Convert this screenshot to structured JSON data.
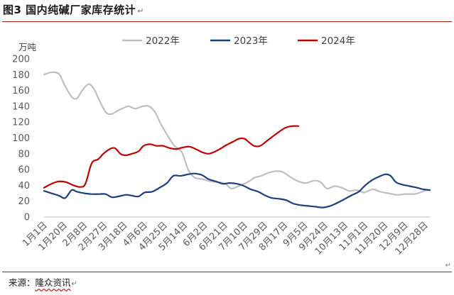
{
  "header": {
    "title": "图3  国内纯碱厂家库存统计",
    "mark": "↵"
  },
  "footer": {
    "source_label": "来源：",
    "source_value": "隆众资讯",
    "mark": "↵",
    "end_mark": "↵"
  },
  "colors": {
    "s2022": "#bfbfbf",
    "s2023": "#1f3f7a",
    "s2024": "#c00000",
    "rule": "#b71c1c",
    "axis": "#bfbfbf"
  },
  "chart_data": {
    "type": "line",
    "title": "",
    "ylabel": "万吨",
    "xlabel": "",
    "ylim": [
      0,
      200
    ],
    "yticks": [
      0,
      20,
      40,
      60,
      80,
      100,
      120,
      140,
      160,
      180,
      200
    ],
    "grid": false,
    "legend": "top",
    "x_tick_labels": [
      "1月1日",
      "1月20日",
      "2月8日",
      "2月27日",
      "3月18日",
      "4月6日",
      "4月25日",
      "5月14日",
      "6月2日",
      "6月21日",
      "7月10日",
      "7月29日",
      "8月17日",
      "9月5日",
      "9月24日",
      "10月13日",
      "11月1日",
      "11月20日",
      "12月9日",
      "12月28日"
    ],
    "x_domain": [
      1,
      365
    ],
    "series": [
      {
        "name": "2022年",
        "color_key": "s2022",
        "points": [
          [
            1,
            180
          ],
          [
            8,
            183
          ],
          [
            15,
            181
          ],
          [
            20,
            168
          ],
          [
            27,
            152
          ],
          [
            32,
            150
          ],
          [
            37,
            160
          ],
          [
            43,
            168
          ],
          [
            48,
            162
          ],
          [
            53,
            148
          ],
          [
            59,
            133
          ],
          [
            64,
            130
          ],
          [
            70,
            134
          ],
          [
            76,
            138
          ],
          [
            81,
            140
          ],
          [
            87,
            137
          ],
          [
            94,
            140
          ],
          [
            100,
            140
          ],
          [
            106,
            132
          ],
          [
            111,
            118
          ],
          [
            118,
            102
          ],
          [
            124,
            90
          ],
          [
            131,
            82
          ],
          [
            137,
            60
          ],
          [
            143,
            50
          ],
          [
            150,
            48
          ],
          [
            158,
            45
          ],
          [
            166,
            44
          ],
          [
            172,
            42
          ],
          [
            178,
            36
          ],
          [
            186,
            40
          ],
          [
            193,
            44
          ],
          [
            200,
            50
          ],
          [
            206,
            52
          ],
          [
            213,
            56
          ],
          [
            220,
            58
          ],
          [
            226,
            57
          ],
          [
            234,
            50
          ],
          [
            241,
            45
          ],
          [
            248,
            43
          ],
          [
            256,
            46
          ],
          [
            262,
            44
          ],
          [
            268,
            36
          ],
          [
            275,
            39
          ],
          [
            282,
            37
          ],
          [
            289,
            33
          ],
          [
            296,
            34
          ],
          [
            303,
            31
          ],
          [
            311,
            35
          ],
          [
            318,
            32
          ],
          [
            326,
            30
          ],
          [
            334,
            28
          ],
          [
            342,
            29
          ],
          [
            350,
            29
          ],
          [
            356,
            31
          ],
          [
            362,
            34
          ],
          [
            365,
            34
          ]
        ]
      },
      {
        "name": "2023年",
        "color_key": "s2023",
        "points": [
          [
            1,
            33
          ],
          [
            8,
            30
          ],
          [
            15,
            27
          ],
          [
            21,
            24
          ],
          [
            27,
            34
          ],
          [
            32,
            32
          ],
          [
            39,
            30
          ],
          [
            46,
            29
          ],
          [
            53,
            29
          ],
          [
            59,
            29
          ],
          [
            65,
            25
          ],
          [
            71,
            26
          ],
          [
            78,
            28
          ],
          [
            84,
            27
          ],
          [
            90,
            26
          ],
          [
            96,
            31
          ],
          [
            103,
            32
          ],
          [
            110,
            37
          ],
          [
            117,
            43
          ],
          [
            123,
            52
          ],
          [
            130,
            52
          ],
          [
            137,
            54
          ],
          [
            143,
            55
          ],
          [
            150,
            53
          ],
          [
            156,
            48
          ],
          [
            163,
            45
          ],
          [
            170,
            42
          ],
          [
            176,
            43
          ],
          [
            183,
            42
          ],
          [
            190,
            39
          ],
          [
            196,
            35
          ],
          [
            203,
            32
          ],
          [
            210,
            27
          ],
          [
            216,
            24
          ],
          [
            223,
            23
          ],
          [
            230,
            21
          ],
          [
            236,
            17
          ],
          [
            243,
            15
          ],
          [
            250,
            14
          ],
          [
            257,
            13
          ],
          [
            264,
            12
          ],
          [
            271,
            14
          ],
          [
            278,
            18
          ],
          [
            285,
            23
          ],
          [
            292,
            28
          ],
          [
            298,
            32
          ],
          [
            304,
            40
          ],
          [
            311,
            47
          ],
          [
            317,
            51
          ],
          [
            323,
            54
          ],
          [
            328,
            52
          ],
          [
            333,
            44
          ],
          [
            339,
            41
          ],
          [
            346,
            39
          ],
          [
            353,
            37
          ],
          [
            359,
            35
          ],
          [
            365,
            34
          ]
        ]
      },
      {
        "name": "2024年",
        "color_key": "s2024",
        "points": [
          [
            1,
            37
          ],
          [
            8,
            42
          ],
          [
            15,
            45
          ],
          [
            22,
            44
          ],
          [
            29,
            40
          ],
          [
            35,
            38
          ],
          [
            40,
            42
          ],
          [
            46,
            68
          ],
          [
            52,
            73
          ],
          [
            57,
            80
          ],
          [
            63,
            86
          ],
          [
            68,
            87
          ],
          [
            73,
            80
          ],
          [
            78,
            78
          ],
          [
            84,
            80
          ],
          [
            90,
            83
          ],
          [
            95,
            90
          ],
          [
            101,
            92
          ],
          [
            107,
            90
          ],
          [
            113,
            90
          ],
          [
            120,
            87
          ],
          [
            126,
            86
          ],
          [
            132,
            88
          ],
          [
            138,
            89
          ],
          [
            144,
            86
          ],
          [
            150,
            82
          ],
          [
            156,
            80
          ],
          [
            161,
            82
          ],
          [
            167,
            86
          ],
          [
            173,
            91
          ],
          [
            179,
            95
          ],
          [
            185,
            99
          ],
          [
            190,
            99
          ],
          [
            194,
            95
          ],
          [
            199,
            90
          ],
          [
            205,
            90
          ],
          [
            211,
            96
          ],
          [
            217,
            102
          ],
          [
            223,
            108
          ],
          [
            229,
            113
          ],
          [
            235,
            115
          ],
          [
            241,
            115
          ]
        ]
      }
    ]
  }
}
